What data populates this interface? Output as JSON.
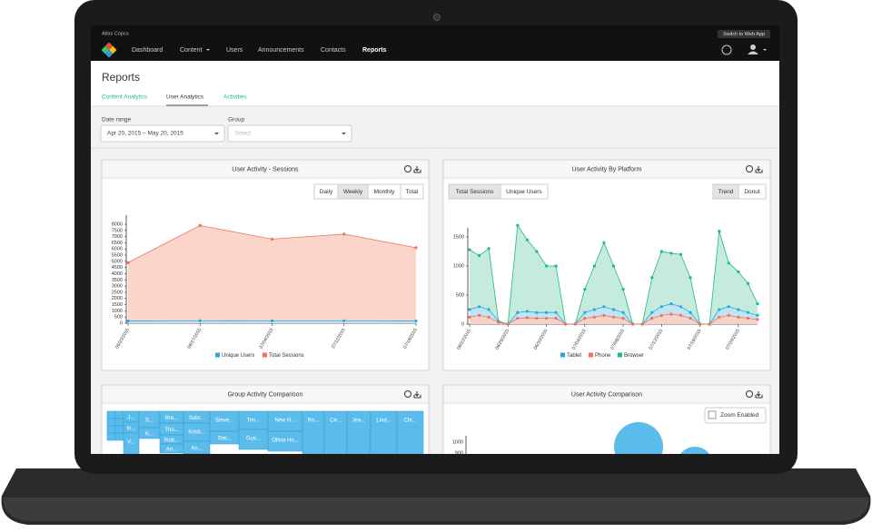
{
  "header": {
    "brand": "Atlas Copco",
    "switch_button": "Switch to Web App",
    "nav": [
      "Dashboard",
      "Content",
      "Users",
      "Announcements",
      "Contacts",
      "Reports"
    ]
  },
  "page": {
    "title": "Reports",
    "tabs": [
      "Content Analytics",
      "User Analytics",
      "Activities"
    ]
  },
  "filters": {
    "date_label": "Date range",
    "date_value": "Apr 20, 2015 – May 20, 2015",
    "group_label": "Group",
    "group_placeholder": "Select"
  },
  "panels": [
    {
      "title": "User Activity - Sessions",
      "buttons": [
        "Daily",
        "Weekly",
        "Monthly",
        "Total"
      ],
      "chart": {
        "type": "area",
        "categories": [
          "06/20/2015",
          "06/27/2015",
          "07/04/2015",
          "07/11/2015",
          "07/18/2015"
        ],
        "ylim": [
          0,
          8000
        ],
        "yticks": [
          0,
          500,
          1000,
          1500,
          2000,
          2500,
          3000,
          3500,
          4000,
          4500,
          5000,
          5500,
          6000,
          6500,
          7000,
          7500,
          8000
        ],
        "series": [
          {
            "name": "Unique Users",
            "color": "#29a8e0",
            "values": [
              180,
              200,
              190,
              200,
              180
            ]
          },
          {
            "name": "Total Sessions",
            "color": "#f0735a",
            "values": [
              4900,
              7900,
              6800,
              7200,
              6100
            ]
          }
        ]
      }
    },
    {
      "title": "User Activity By Platform",
      "buttons": [
        "Total Sessions",
        "Unique Users",
        "Trend",
        "Donut"
      ],
      "chart": {
        "type": "area",
        "categories": [
          "06/22/2015",
          null,
          null,
          null,
          "06/26/2015",
          null,
          null,
          null,
          "06/30/2015",
          null,
          null,
          null,
          "07/04/2015",
          null,
          null,
          null,
          "07/08/2015",
          null,
          null,
          null,
          "07/12/2015",
          null,
          null,
          null,
          "07/16/2015",
          null,
          null,
          null,
          "07/20/2015",
          null,
          null
        ],
        "ylim": [
          0,
          1500
        ],
        "yticks": [
          0,
          500,
          1000,
          1500
        ],
        "series": [
          {
            "name": "Tablet",
            "color": "#29a8e0",
            "values": [
              250,
              300,
              250,
              50,
              0,
              200,
              220,
              200,
              200,
              200,
              0,
              0,
              200,
              250,
              300,
              250,
              200,
              0,
              0,
              200,
              300,
              350,
              300,
              200,
              0,
              0,
              250,
              300,
              250,
              200,
              150
            ]
          },
          {
            "name": "Phone",
            "color": "#f0735a",
            "values": [
              120,
              150,
              120,
              30,
              0,
              100,
              110,
              100,
              100,
              100,
              0,
              0,
              100,
              120,
              150,
              120,
              100,
              0,
              0,
              100,
              150,
              170,
              150,
              100,
              0,
              0,
              120,
              150,
              120,
              100,
              80
            ]
          },
          {
            "name": "Browser",
            "color": "#1fb88a",
            "values": [
              1280,
              1180,
              1300,
              50,
              0,
              1700,
              1450,
              1250,
              1000,
              1000,
              0,
              0,
              600,
              1000,
              1400,
              1000,
              600,
              0,
              0,
              800,
              1250,
              1220,
              1200,
              800,
              0,
              0,
              1600,
              1050,
              900,
              700,
              350
            ]
          }
        ]
      }
    },
    {
      "title": "Group Activity Comparison",
      "cells": [
        "J...",
        "In...",
        "V...",
        "S...",
        "K...",
        "Bre...",
        "Tho...",
        "Rob...",
        "An...",
        "Subr...",
        "Kristi...",
        "An...",
        "Steve...",
        "Stei...",
        "Tim...",
        "Gus...",
        "New H...",
        "Olivia Ho...",
        "Ro...",
        "Ce...",
        "Jea...",
        "Lind...",
        "Chi..."
      ]
    },
    {
      "title": "User Activity Comparison",
      "zoom_label": "Zoom Enabled",
      "yticks": [
        1000,
        900
      ]
    }
  ]
}
